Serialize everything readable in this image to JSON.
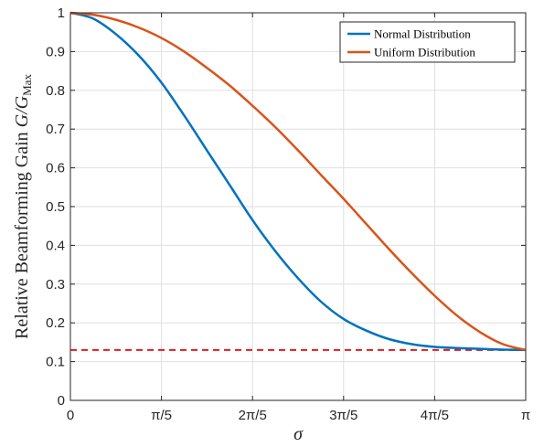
{
  "chart_data": {
    "type": "line",
    "xlabel": "σ",
    "ylabel_main": "Relative Beamforming Gain ",
    "ylabel_var": "G/G",
    "ylabel_sub": "Max",
    "xlim": [
      0,
      3.14159
    ],
    "ylim": [
      0,
      1
    ],
    "grid": true,
    "legend_position": "top-right",
    "x_ticks": [
      {
        "value": 0,
        "label": "0"
      },
      {
        "value": 0.628319,
        "label": "π/5"
      },
      {
        "value": 1.256637,
        "label": "2π/5"
      },
      {
        "value": 1.884956,
        "label": "3π/5"
      },
      {
        "value": 2.513274,
        "label": "4π/5"
      },
      {
        "value": 3.141593,
        "label": "π"
      }
    ],
    "y_ticks": [
      {
        "value": 0,
        "label": "0"
      },
      {
        "value": 0.1,
        "label": "0.1"
      },
      {
        "value": 0.2,
        "label": "0.2"
      },
      {
        "value": 0.3,
        "label": "0.3"
      },
      {
        "value": 0.4,
        "label": "0.4"
      },
      {
        "value": 0.5,
        "label": "0.5"
      },
      {
        "value": 0.6,
        "label": "0.6"
      },
      {
        "value": 0.7,
        "label": "0.7"
      },
      {
        "value": 0.8,
        "label": "0.8"
      },
      {
        "value": 0.9,
        "label": "0.9"
      },
      {
        "value": 1,
        "label": "1"
      }
    ],
    "series": [
      {
        "name": "Normal Distribution",
        "color": "#0072BD",
        "x": [
          0,
          0.157,
          0.314,
          0.471,
          0.628,
          0.785,
          0.942,
          1.1,
          1.257,
          1.414,
          1.571,
          1.728,
          1.885,
          2.042,
          2.199,
          2.356,
          2.513,
          2.67,
          2.827,
          2.985,
          3.142
        ],
        "y": [
          1.0,
          0.985,
          0.945,
          0.89,
          0.82,
          0.735,
          0.645,
          0.555,
          0.465,
          0.385,
          0.315,
          0.255,
          0.21,
          0.18,
          0.158,
          0.145,
          0.138,
          0.135,
          0.133,
          0.131,
          0.13
        ]
      },
      {
        "name": "Uniform Distribution",
        "color": "#D95319",
        "x": [
          0,
          0.157,
          0.314,
          0.471,
          0.628,
          0.785,
          0.942,
          1.1,
          1.257,
          1.414,
          1.571,
          1.728,
          1.885,
          2.042,
          2.199,
          2.356,
          2.513,
          2.67,
          2.827,
          2.985,
          3.142
        ],
        "y": [
          1.0,
          0.995,
          0.982,
          0.962,
          0.935,
          0.9,
          0.858,
          0.812,
          0.76,
          0.705,
          0.645,
          0.582,
          0.52,
          0.455,
          0.39,
          0.328,
          0.27,
          0.218,
          0.176,
          0.145,
          0.13
        ]
      }
    ],
    "reference_line": {
      "y": 0.13,
      "color": "#E41A1C",
      "style": "dashed"
    }
  }
}
